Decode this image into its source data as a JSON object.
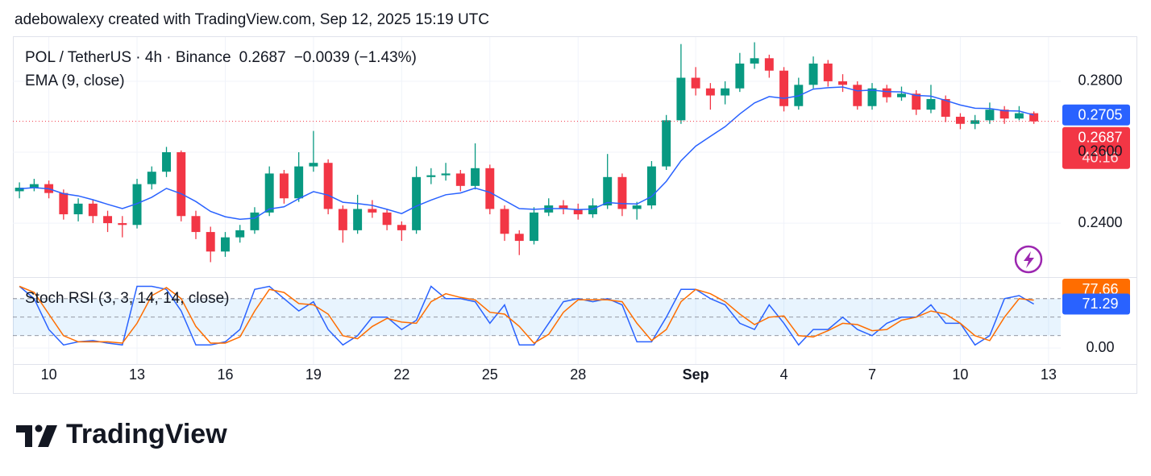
{
  "watermark": "adebowalexy created with TradingView.com, Sep 12, 2025 15:19 UTC",
  "logo": "TradingView",
  "chart_data": [
    {
      "type": "candlestick",
      "title": "POL / TetherUS · 4h · Binance",
      "last_price": "0.2687",
      "change": "−0.0039 (−1.43%)",
      "up_color": "#089981",
      "down_color": "#f23645",
      "open": [
        0.249,
        0.25,
        0.251,
        0.2485,
        0.2425,
        0.2455,
        0.242,
        0.24,
        0.2395,
        0.251,
        0.2545,
        0.26,
        0.242,
        0.2375,
        0.232,
        0.236,
        0.238,
        0.243,
        0.254,
        0.247,
        0.256,
        0.257,
        0.244,
        0.238,
        0.244,
        0.243,
        0.2395,
        0.238,
        0.253,
        0.2535,
        0.254,
        0.2505,
        0.2555,
        0.244,
        0.237,
        0.235,
        0.243,
        0.245,
        0.244,
        0.2425,
        0.245,
        0.253,
        0.244,
        0.245,
        0.256,
        0.269,
        0.281,
        0.278,
        0.276,
        0.278,
        0.285,
        0.2865,
        0.283,
        0.273,
        0.279,
        0.285,
        0.28,
        0.279,
        0.273,
        0.278,
        0.2755,
        0.2765,
        0.272,
        0.275,
        0.27,
        0.268,
        0.269,
        0.272,
        0.2695,
        0.271,
        null
      ],
      "high": [
        0.2515,
        0.2525,
        0.252,
        0.2495,
        0.247,
        0.2465,
        0.2435,
        0.242,
        0.2525,
        0.256,
        0.2615,
        0.2605,
        0.2435,
        0.239,
        0.2375,
        0.2395,
        0.2445,
        0.256,
        0.255,
        0.26,
        0.266,
        0.258,
        0.245,
        0.248,
        0.2465,
        0.244,
        0.2405,
        0.256,
        0.2555,
        0.257,
        0.255,
        0.2625,
        0.2565,
        0.245,
        0.238,
        0.2445,
        0.247,
        0.2465,
        0.2455,
        0.247,
        0.2595,
        0.254,
        0.246,
        0.2575,
        0.2705,
        0.2905,
        0.284,
        0.2795,
        0.28,
        0.288,
        0.291,
        0.2875,
        0.284,
        0.281,
        0.287,
        0.286,
        0.282,
        0.28,
        0.2795,
        0.279,
        0.2785,
        0.2775,
        0.279,
        0.276,
        0.271,
        0.2705,
        0.274,
        0.273,
        0.273,
        0.2715,
        null
      ],
      "low": [
        0.247,
        0.249,
        0.247,
        0.241,
        0.2405,
        0.24,
        0.2375,
        0.236,
        0.2385,
        0.2495,
        0.253,
        0.2405,
        0.2355,
        0.229,
        0.2305,
        0.2345,
        0.237,
        0.242,
        0.2455,
        0.246,
        0.2545,
        0.2425,
        0.2345,
        0.237,
        0.2415,
        0.238,
        0.235,
        0.237,
        0.251,
        0.252,
        0.249,
        0.2495,
        0.2425,
        0.235,
        0.231,
        0.234,
        0.242,
        0.2425,
        0.241,
        0.2415,
        0.244,
        0.242,
        0.241,
        0.244,
        0.255,
        0.268,
        0.276,
        0.272,
        0.2735,
        0.277,
        0.2835,
        0.281,
        0.2715,
        0.272,
        0.278,
        0.2785,
        0.277,
        0.272,
        0.272,
        0.274,
        0.2745,
        0.2705,
        0.271,
        0.2685,
        0.2665,
        0.2665,
        0.268,
        0.268,
        0.269,
        0.268,
        null
      ],
      "close": [
        0.25,
        0.251,
        0.2485,
        0.2425,
        0.2455,
        0.242,
        0.24,
        0.2395,
        0.251,
        0.2545,
        0.26,
        0.242,
        0.2375,
        0.232,
        0.236,
        0.238,
        0.243,
        0.254,
        0.247,
        0.256,
        0.257,
        0.244,
        0.238,
        0.244,
        0.243,
        0.2395,
        0.238,
        0.253,
        0.2535,
        0.254,
        0.2505,
        0.2555,
        0.244,
        0.237,
        0.235,
        0.243,
        0.245,
        0.244,
        0.2425,
        0.245,
        0.253,
        0.244,
        0.245,
        0.256,
        0.269,
        0.281,
        0.278,
        0.276,
        0.278,
        0.285,
        0.2865,
        0.283,
        0.273,
        0.279,
        0.285,
        0.28,
        0.279,
        0.273,
        0.278,
        0.2755,
        0.2765,
        0.272,
        0.275,
        0.27,
        0.268,
        0.269,
        0.272,
        0.2695,
        0.271,
        0.2687,
        null
      ],
      "series": [
        {
          "name": "EMA (9, close)",
          "color": "#2962ff",
          "values": [
            0.2497,
            0.25,
            0.2497,
            0.2483,
            0.2477,
            0.2466,
            0.2453,
            0.2441,
            0.2455,
            0.2473,
            0.2498,
            0.2483,
            0.2461,
            0.2433,
            0.2418,
            0.2411,
            0.2414,
            0.244,
            0.2446,
            0.2469,
            0.2489,
            0.2479,
            0.2459,
            0.2455,
            0.245,
            0.2439,
            0.2427,
            0.2448,
            0.2465,
            0.248,
            0.2485,
            0.2499,
            0.2487,
            0.2464,
            0.2441,
            0.2439,
            0.2441,
            0.2441,
            0.2438,
            0.244,
            0.2458,
            0.2455,
            0.2454,
            0.2475,
            0.2518,
            0.2576,
            0.2617,
            0.2645,
            0.2672,
            0.2708,
            0.2739,
            0.2757,
            0.2752,
            0.2759,
            0.2778,
            0.2782,
            0.2784,
            0.2773,
            0.2775,
            0.2771,
            0.277,
            0.276,
            0.2758,
            0.2746,
            0.2733,
            0.2724,
            0.2723,
            0.2717,
            0.2716,
            0.2705,
            null
          ]
        }
      ],
      "ylim": [
        0.2248,
        0.2927
      ],
      "yticks": [
        {
          "value": 0.24,
          "label": "0.2400"
        },
        {
          "value": 0.26,
          "label": "0.2600"
        },
        {
          "value": 0.28,
          "label": "0.2800"
        }
      ],
      "price_labels": [
        {
          "value": 0.2705,
          "label": "0.2705",
          "color": "#2962ff"
        },
        {
          "value": 0.2687,
          "label": "0.2687",
          "color": "#f23645",
          "countdown": "40:16"
        }
      ],
      "grid": true
    },
    {
      "type": "line",
      "title": "Stoch RSI (3, 3, 14, 14, close)",
      "categories": [
        null,
        null,
        "10",
        null,
        null,
        null,
        null,
        null,
        "13",
        null,
        null,
        null,
        null,
        null,
        "16",
        null,
        null,
        null,
        null,
        null,
        "19",
        null,
        null,
        null,
        null,
        null,
        "22",
        null,
        null,
        null,
        null,
        null,
        "25",
        null,
        null,
        null,
        null,
        null,
        "28",
        null,
        null,
        null,
        null,
        null,
        null,
        null,
        "Sep",
        null,
        null,
        null,
        null,
        null,
        "4",
        null,
        null,
        null,
        null,
        null,
        "7",
        null,
        null,
        null,
        null,
        null,
        "10",
        null,
        null,
        null,
        null,
        null,
        "13"
      ],
      "series": [
        {
          "color": "#2962ff",
          "values": [
            100,
            80,
            30,
            5,
            10,
            12,
            8,
            5,
            100,
            100,
            95,
            60,
            5,
            5,
            10,
            30,
            95,
            100,
            80,
            60,
            75,
            30,
            5,
            20,
            50,
            50,
            30,
            45,
            100,
            80,
            80,
            75,
            40,
            70,
            5,
            5,
            40,
            75,
            80,
            75,
            80,
            70,
            10,
            10,
            50,
            95,
            95,
            80,
            70,
            40,
            30,
            70,
            40,
            5,
            30,
            30,
            50,
            30,
            20,
            40,
            50,
            50,
            70,
            40,
            40,
            5,
            20,
            80,
            85,
            71.29,
            null
          ]
        },
        {
          "color": "#ff6d00",
          "values": [
            100,
            90,
            55,
            20,
            10,
            10,
            10,
            8,
            40,
            85,
            98,
            80,
            35,
            8,
            8,
            18,
            60,
            95,
            90,
            72,
            70,
            55,
            20,
            15,
            35,
            48,
            42,
            40,
            75,
            88,
            82,
            78,
            58,
            55,
            35,
            8,
            22,
            58,
            78,
            78,
            78,
            75,
            40,
            12,
            30,
            75,
            95,
            88,
            75,
            55,
            38,
            50,
            52,
            20,
            18,
            28,
            40,
            38,
            28,
            30,
            45,
            50,
            60,
            55,
            40,
            20,
            12,
            50,
            80,
            77.66,
            null
          ]
        }
      ],
      "ylim": [
        -26,
        115
      ],
      "yticks": [
        {
          "value": 0,
          "label": "0.00"
        }
      ],
      "bands": [
        20,
        50,
        80
      ],
      "band_fill": "rgba(33,150,243,0.1)",
      "price_labels": [
        {
          "value": 77.66,
          "label": "77.66",
          "color": "#ff6d00"
        },
        {
          "value": 71.29,
          "label": "71.29",
          "color": "#2962ff"
        }
      ],
      "grid": true
    }
  ]
}
